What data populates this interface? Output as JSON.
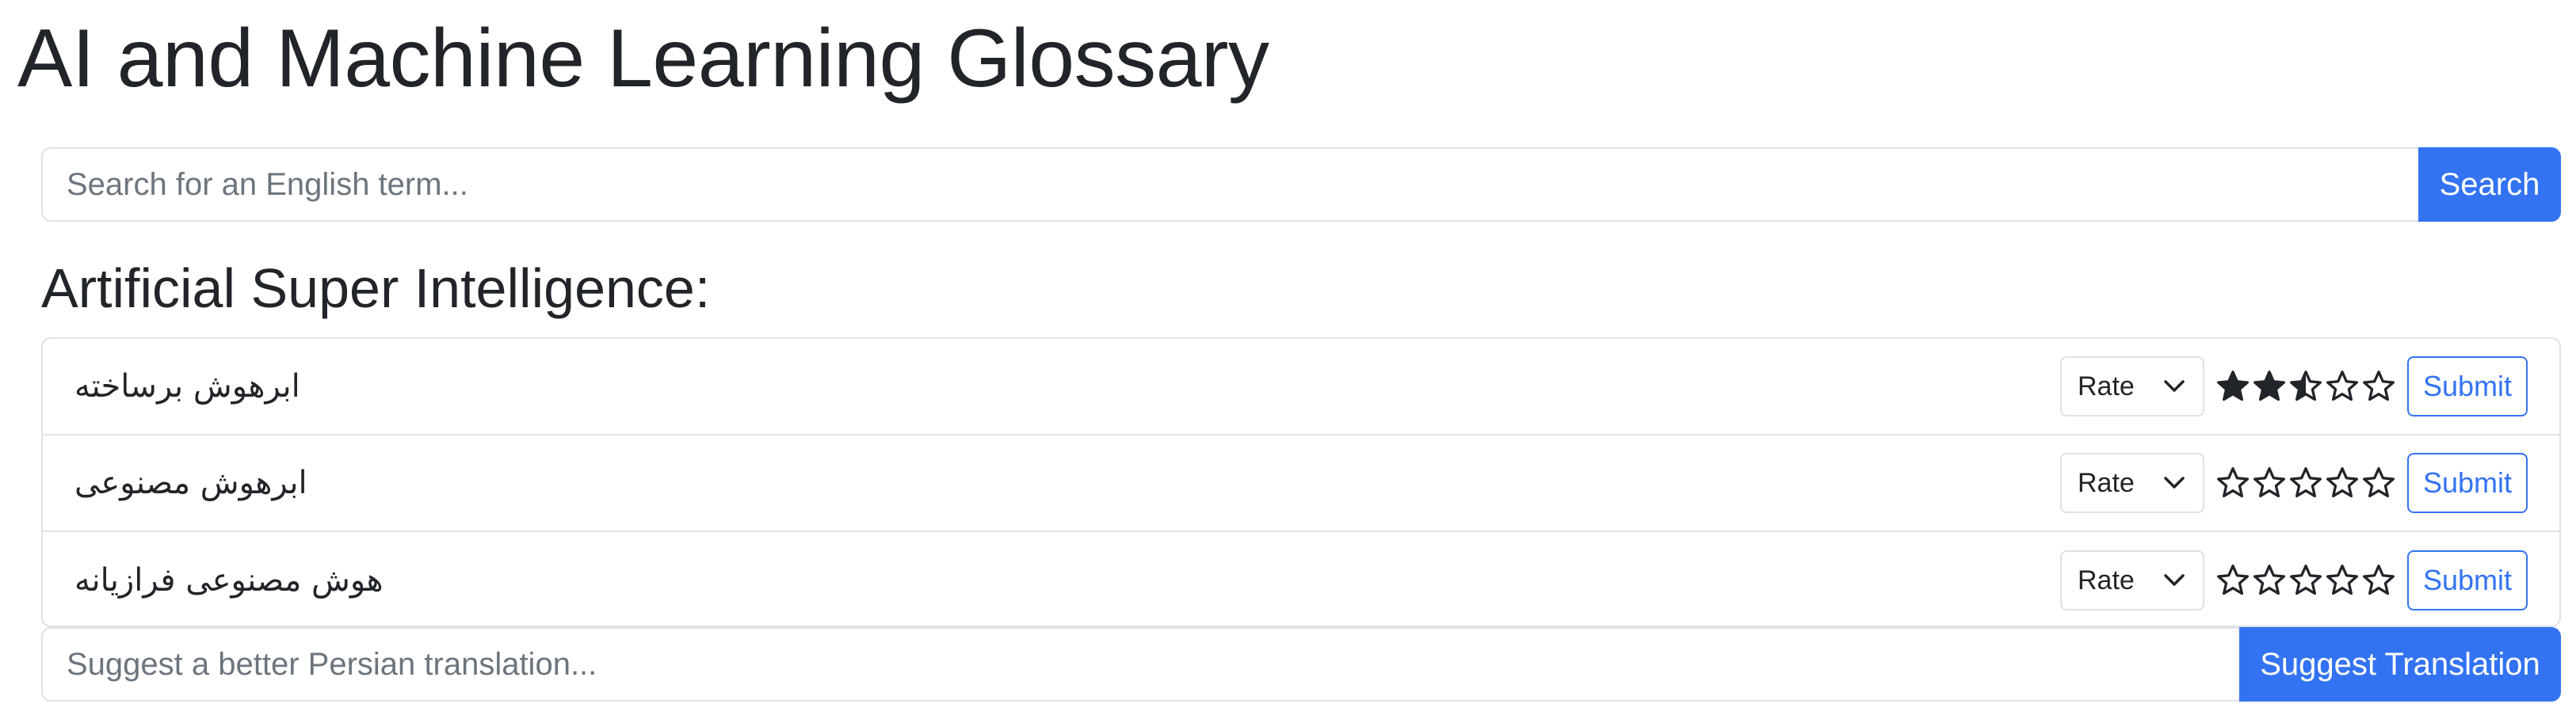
{
  "page_title": "AI and Machine Learning Glossary",
  "search": {
    "placeholder": "Search for an English term...",
    "button_label": "Search"
  },
  "term_heading": "Artificial Super Intelligence:",
  "translations": [
    {
      "text": "ابرهوش برساخته",
      "rate_label": "Rate",
      "rating": 2.5,
      "max_rating": 5,
      "submit_label": "Submit"
    },
    {
      "text": "ابرهوش مصنوعی",
      "rate_label": "Rate",
      "rating": 0,
      "max_rating": 5,
      "submit_label": "Submit"
    },
    {
      "text": "هوش مصنوعی فرازیانه",
      "rate_label": "Rate",
      "rating": 0,
      "max_rating": 5,
      "submit_label": "Submit"
    }
  ],
  "suggest": {
    "placeholder": "Suggest a better Persian translation...",
    "button_label": "Suggest Translation"
  },
  "colors": {
    "accent": "#3373f2",
    "border": "#dee2e6",
    "text": "#212529",
    "star": "#212529"
  }
}
